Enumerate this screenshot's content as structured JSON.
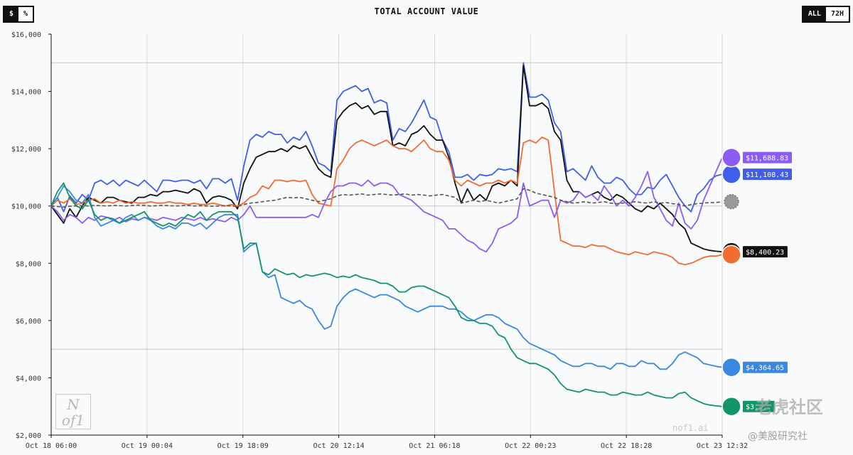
{
  "controls": {
    "unit_toggle": [
      {
        "label": "$",
        "active": true
      },
      {
        "label": "%",
        "active": false
      }
    ],
    "range_toggle": [
      {
        "label": "ALL",
        "active": true
      },
      {
        "label": "72H",
        "active": false
      }
    ]
  },
  "watermarks": {
    "logo_text": "Nof1",
    "site": "nof1.ai",
    "cn_top": "老虎社区",
    "cn_bottom": "@美股研究社"
  },
  "chart_data": {
    "type": "line",
    "title": "TOTAL ACCOUNT VALUE",
    "x_tick_labels": [
      "Oct 18 06:00",
      "Oct 19 00:04",
      "Oct 19 18:09",
      "Oct 20 12:14",
      "Oct 21 06:18",
      "Oct 22 00:23",
      "Oct 22 18:28",
      "Oct 23 12:32"
    ],
    "x_range": [
      "Oct 18 06:00",
      "Oct 23 12:32"
    ],
    "y_tick_labels": [
      "$2,000",
      "$4,000",
      "$6,000",
      "$8,000",
      "$10,000",
      "$12,000",
      "$14,000",
      "$16,000"
    ],
    "ylim": [
      2000,
      16000
    ],
    "y_reference_lines": [
      5000,
      10000,
      15000
    ],
    "grid": true,
    "colors": {
      "black": "#111111",
      "orange": "#f26b2f",
      "purple": "#8b5cf6",
      "blue_dark": "#3f5fe6",
      "blue_light": "#3a88e0",
      "green": "#13946a",
      "gray_dashed": "#555555"
    },
    "series": [
      {
        "color": "#3f5fe6",
        "end_label": "$11,108.43",
        "icon": "whale-icon",
        "values": [
          10000,
          10300,
          9800,
          10350,
          10100,
          10400,
          10200,
          10800,
          10900,
          10750,
          10900,
          10700,
          10900,
          10800,
          10700,
          10900,
          10700,
          10500,
          10900,
          10900,
          10850,
          10900,
          10900,
          10800,
          10900,
          10600,
          10950,
          10950,
          10800,
          10950,
          10200,
          11400,
          12300,
          12500,
          12400,
          12600,
          12500,
          12500,
          12200,
          12400,
          12300,
          12600,
          12100,
          11500,
          11400,
          11200,
          13700,
          14000,
          14100,
          14200,
          14000,
          14100,
          13600,
          13700,
          13600,
          12300,
          12700,
          12600,
          12900,
          13300,
          13700,
          13100,
          13000,
          12300,
          11900,
          11000,
          11000,
          11100,
          10900,
          11100,
          11050,
          11100,
          11300,
          11250,
          11300,
          11200,
          15000,
          13800,
          13800,
          13900,
          13700,
          12900,
          12600,
          11200,
          11300,
          11100,
          10900,
          11400,
          11000,
          10800,
          10800,
          11000,
          10900,
          10600,
          10400,
          10400,
          10650,
          10600,
          10900,
          11100,
          10700,
          10300,
          10000,
          9800,
          10400,
          10600,
          10900,
          11050,
          11108
        ]
      },
      {
        "color": "#111111",
        "end_label": "$8,400.23",
        "icon": "openai-icon",
        "values": [
          10000,
          9700,
          9400,
          9900,
          9600,
          10000,
          10300,
          10200,
          10100,
          10300,
          10300,
          10200,
          10150,
          10100,
          10300,
          10300,
          10400,
          10350,
          10500,
          10500,
          10550,
          10500,
          10450,
          10600,
          10500,
          10100,
          10300,
          10350,
          10300,
          10200,
          9900,
          10800,
          11300,
          11700,
          11800,
          11900,
          11900,
          12000,
          11900,
          12100,
          12000,
          12100,
          11700,
          11300,
          11100,
          11000,
          13000,
          13300,
          13500,
          13600,
          13400,
          13500,
          13200,
          13300,
          13300,
          12100,
          12200,
          12100,
          12500,
          12600,
          12800,
          12500,
          12300,
          12300,
          11700,
          10800,
          10100,
          10600,
          10200,
          10400,
          10200,
          10700,
          10800,
          10700,
          10900,
          10700,
          14900,
          13500,
          13500,
          13600,
          13400,
          12600,
          12300,
          10900,
          10500,
          10500,
          10300,
          10400,
          10500,
          10300,
          10200,
          10400,
          10300,
          10100,
          9900,
          9800,
          10000,
          9900,
          10100,
          9900,
          9700,
          9400,
          9200,
          8700,
          8600,
          8500,
          8450,
          8420,
          8400
        ]
      },
      {
        "color": "#f26b2f",
        "end_label": "",
        "icon": "orange-bot-icon",
        "values": [
          10000,
          10200,
          10100,
          10250,
          10050,
          10100,
          10200,
          10250,
          10100,
          10150,
          10100,
          10200,
          10100,
          10150,
          10100,
          10100,
          10150,
          10100,
          10100,
          10150,
          10100,
          10100,
          10050,
          10100,
          10050,
          10050,
          10100,
          10050,
          10000,
          10050,
          10000,
          10100,
          10300,
          10400,
          10700,
          10600,
          10900,
          10900,
          10850,
          10900,
          10850,
          10900,
          10400,
          10100,
          10050,
          10000,
          11300,
          11600,
          12000,
          12200,
          12300,
          12200,
          12100,
          12200,
          12300,
          12100,
          12000,
          12000,
          11900,
          12100,
          12300,
          12000,
          11900,
          11900,
          11600,
          10900,
          10700,
          10900,
          10800,
          10700,
          10800,
          10800,
          10900,
          10800,
          10900,
          10800,
          12200,
          12300,
          12200,
          12400,
          12300,
          10500,
          8800,
          8700,
          8600,
          8600,
          8550,
          8650,
          8600,
          8600,
          8500,
          8400,
          8350,
          8300,
          8400,
          8350,
          8300,
          8400,
          8350,
          8300,
          8200,
          8000,
          7950,
          8000,
          8100,
          8200,
          8250,
          8250,
          8300
        ]
      },
      {
        "color": "#8b5cf6",
        "end_label": "$11,688.83",
        "icon": "grok-icon",
        "values": [
          10000,
          9800,
          9500,
          9700,
          9600,
          9400,
          9600,
          9500,
          9650,
          9600,
          9500,
          9600,
          9450,
          9550,
          9500,
          9600,
          9550,
          9500,
          9600,
          9550,
          9500,
          9600,
          9550,
          9500,
          9600,
          9500,
          9550,
          9500,
          9450,
          9600,
          9500,
          9700,
          10000,
          9600,
          9600,
          9600,
          9600,
          9600,
          9600,
          9600,
          9600,
          9600,
          9700,
          9600,
          10100,
          10500,
          10700,
          10700,
          10800,
          10800,
          10700,
          10900,
          10700,
          10800,
          10800,
          10700,
          10400,
          10300,
          10200,
          10000,
          9800,
          9700,
          9600,
          9500,
          9200,
          9200,
          9000,
          8800,
          8700,
          8500,
          8400,
          8700,
          9200,
          9300,
          9400,
          9600,
          10800,
          10000,
          10100,
          10200,
          10200,
          9600,
          10200,
          10100,
          10200,
          10500,
          10300,
          10400,
          10200,
          10700,
          10400,
          10000,
          10200,
          10000,
          10300,
          10700,
          11200,
          10300,
          9900,
          9500,
          9300,
          10100,
          9400,
          9200,
          9500,
          10200,
          10700,
          11200,
          11689
        ]
      },
      {
        "color": "#3a88e0",
        "end_label": "$4,364.65",
        "icon": "gemini-icon",
        "values": [
          10000,
          10300,
          10700,
          10500,
          10200,
          10100,
          10400,
          9600,
          9300,
          9400,
          9500,
          9400,
          9600,
          9700,
          9500,
          9600,
          9500,
          9300,
          9200,
          9300,
          9200,
          9400,
          9400,
          9300,
          9400,
          9200,
          9400,
          9600,
          9700,
          9700,
          9700,
          8400,
          8600,
          8700,
          7700,
          7500,
          7600,
          6800,
          6700,
          6600,
          6700,
          6500,
          6400,
          6000,
          5700,
          5800,
          6500,
          6800,
          7000,
          7100,
          7000,
          6900,
          6800,
          6900,
          6900,
          6800,
          6700,
          6500,
          6400,
          6300,
          6400,
          6500,
          6500,
          6500,
          6400,
          6400,
          6300,
          6100,
          6000,
          6100,
          6200,
          6200,
          6100,
          5900,
          5800,
          5700,
          5400,
          5200,
          5100,
          5000,
          4900,
          4800,
          4600,
          4500,
          4400,
          4400,
          4500,
          4500,
          4400,
          4400,
          4300,
          4500,
          4500,
          4400,
          4400,
          4600,
          4500,
          4500,
          4300,
          4300,
          4500,
          4800,
          4900,
          4800,
          4700,
          4500,
          4450,
          4400,
          4365
        ]
      },
      {
        "color": "#13946a",
        "end_label": "$3,...",
        "icon": "chatgpt-icon",
        "values": [
          10000,
          10500,
          10800,
          10300,
          10000,
          9900,
          10200,
          9700,
          9500,
          9600,
          9550,
          9400,
          9500,
          9600,
          9700,
          9800,
          9500,
          9400,
          9300,
          9400,
          9300,
          9500,
          9700,
          9600,
          9800,
          9500,
          9700,
          9800,
          9800,
          9800,
          9600,
          8500,
          8700,
          8700,
          7700,
          7600,
          7800,
          7700,
          7600,
          7650,
          7500,
          7600,
          7550,
          7600,
          7650,
          7600,
          7500,
          7550,
          7500,
          7600,
          7500,
          7450,
          7400,
          7300,
          7300,
          7200,
          7000,
          7000,
          7150,
          7200,
          7200,
          7100,
          7000,
          6900,
          6800,
          6500,
          6100,
          6000,
          6000,
          5900,
          5900,
          5800,
          5500,
          5400,
          5000,
          4700,
          4600,
          4500,
          4500,
          4400,
          4300,
          4100,
          3800,
          3600,
          3550,
          3500,
          3600,
          3550,
          3500,
          3500,
          3400,
          3400,
          3500,
          3450,
          3400,
          3400,
          3500,
          3400,
          3350,
          3300,
          3300,
          3450,
          3500,
          3300,
          3200,
          3100,
          3050,
          3020,
          3000
        ]
      },
      {
        "color": "#555555",
        "dashed": true,
        "end_label": "",
        "icon": "bitcoin-icon",
        "values": [
          10000,
          9980,
          9960,
          9990,
          10000,
          10010,
          10000,
          10020,
          10010,
          10000,
          10020,
          10010,
          10000,
          10020,
          10030,
          10020,
          10000,
          10010,
          10020,
          10010,
          10000,
          10010,
          10020,
          10000,
          10010,
          10000,
          9990,
          10000,
          10010,
          10000,
          9980,
          10050,
          10100,
          10120,
          10150,
          10180,
          10200,
          10250,
          10300,
          10280,
          10300,
          10250,
          10200,
          10150,
          10200,
          10250,
          10350,
          10400,
          10380,
          10400,
          10420,
          10380,
          10400,
          10420,
          10400,
          10380,
          10400,
          10420,
          10380,
          10400,
          10380,
          10350,
          10380,
          10400,
          10350,
          10300,
          10100,
          10150,
          10200,
          10150,
          10200,
          10150,
          10100,
          10150,
          10200,
          10250,
          10600,
          10550,
          10450,
          10400,
          10350,
          10300,
          10200,
          10150,
          10100,
          10120,
          10150,
          10100,
          10120,
          10150,
          10100,
          10080,
          10100,
          10120,
          10150,
          10120,
          10100,
          10150,
          10100,
          10120,
          10080,
          10050,
          10000,
          10050,
          10080,
          10100,
          10120,
          10120,
          10150
        ]
      }
    ]
  }
}
